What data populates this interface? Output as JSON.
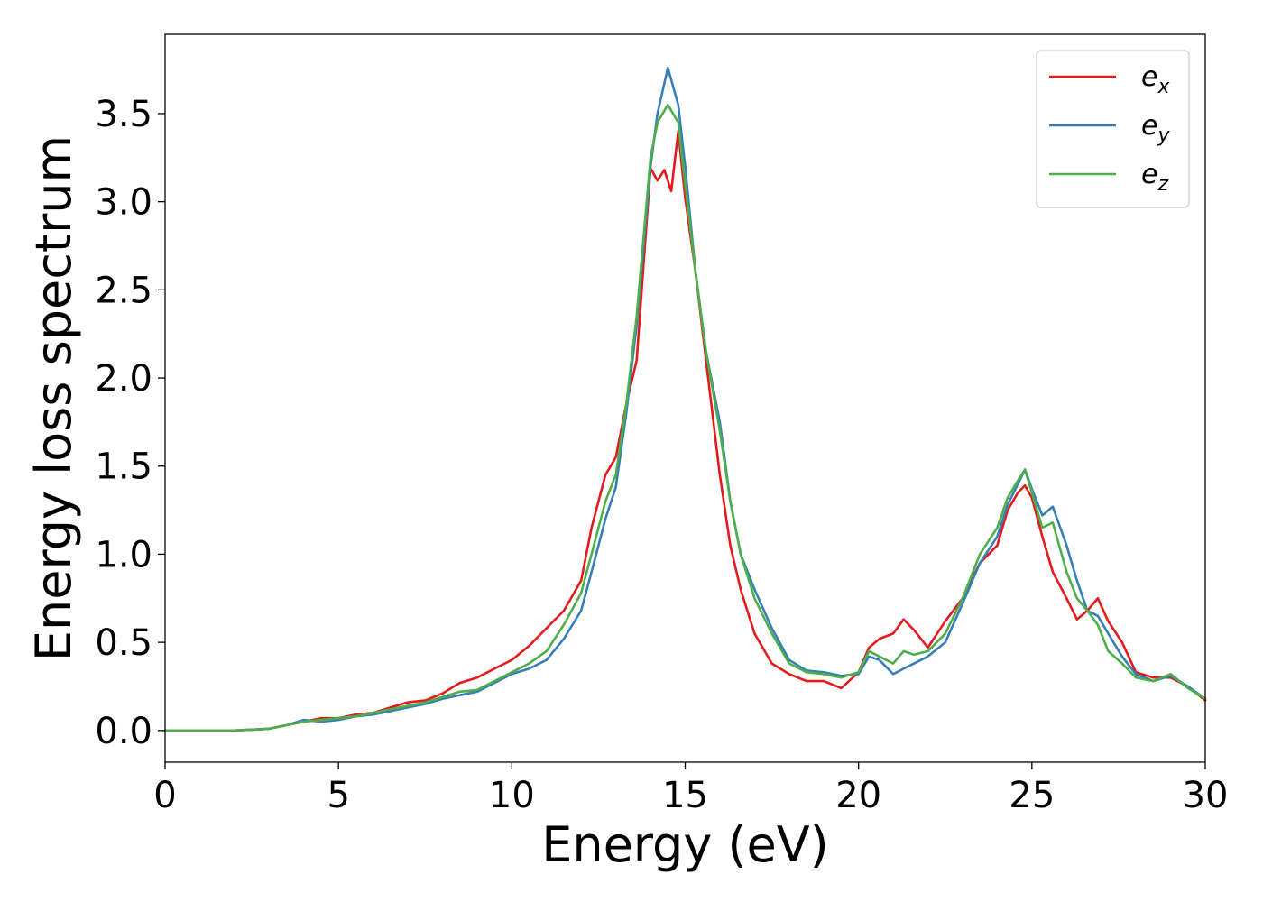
{
  "chart_data": {
    "type": "line",
    "xlabel": "Energy (eV)",
    "ylabel": "Energy loss spectrum",
    "xlim": [
      0,
      30
    ],
    "ylim": [
      -0.18,
      3.95
    ],
    "xticks": [
      0,
      5,
      10,
      15,
      20,
      25,
      30
    ],
    "xtick_labels": [
      "0",
      "5",
      "10",
      "15",
      "20",
      "25",
      "30"
    ],
    "yticks": [
      0.0,
      0.5,
      1.0,
      1.5,
      2.0,
      2.5,
      3.0,
      3.5
    ],
    "ytick_labels": [
      "0.0",
      "0.5",
      "1.0",
      "1.5",
      "2.0",
      "2.5",
      "3.0",
      "3.5"
    ],
    "grid": false,
    "legend_position": "top-right",
    "series": [
      {
        "name": "e_x",
        "label_base": "e",
        "label_sub": "x",
        "color": "#e41a1c",
        "x": [
          0,
          2,
          3,
          3.5,
          4,
          4.5,
          5,
          5.5,
          6,
          6.5,
          7,
          7.5,
          8,
          8.5,
          9,
          9.5,
          10,
          10.5,
          11,
          11.5,
          12,
          12.3,
          12.7,
          13,
          13.3,
          13.6,
          14,
          14.2,
          14.4,
          14.6,
          14.8,
          15,
          15.3,
          15.6,
          16,
          16.3,
          16.6,
          17,
          17.5,
          18,
          18.5,
          19,
          19.5,
          20,
          20.3,
          20.6,
          21,
          21.3,
          21.6,
          22,
          22.5,
          23,
          23.5,
          24,
          24.3,
          24.6,
          24.8,
          25,
          25.3,
          25.6,
          26,
          26.3,
          26.6,
          26.9,
          27.2,
          27.6,
          28,
          28.5,
          29,
          29.5,
          30
        ],
        "y": [
          0,
          0,
          0.01,
          0.03,
          0.05,
          0.07,
          0.07,
          0.09,
          0.1,
          0.13,
          0.16,
          0.17,
          0.21,
          0.27,
          0.3,
          0.35,
          0.4,
          0.48,
          0.58,
          0.68,
          0.85,
          1.15,
          1.45,
          1.55,
          1.85,
          2.1,
          3.19,
          3.12,
          3.18,
          3.06,
          3.4,
          3.02,
          2.6,
          2.1,
          1.45,
          1.05,
          0.8,
          0.55,
          0.38,
          0.32,
          0.28,
          0.28,
          0.24,
          0.33,
          0.47,
          0.52,
          0.55,
          0.63,
          0.57,
          0.47,
          0.62,
          0.75,
          0.95,
          1.05,
          1.25,
          1.35,
          1.39,
          1.32,
          1.1,
          0.9,
          0.75,
          0.63,
          0.68,
          0.75,
          0.62,
          0.5,
          0.33,
          0.3,
          0.3,
          0.25,
          0.17
        ]
      },
      {
        "name": "e_y",
        "label_base": "e",
        "label_sub": "y",
        "color": "#377eb8",
        "x": [
          0,
          2,
          3,
          3.5,
          4,
          4.5,
          5,
          5.5,
          6,
          6.5,
          7,
          7.5,
          8,
          8.5,
          9,
          9.5,
          10,
          10.5,
          11,
          11.5,
          12,
          12.3,
          12.7,
          13,
          13.3,
          13.6,
          14,
          14.2,
          14.5,
          14.8,
          15,
          15.3,
          15.6,
          16,
          16.3,
          16.6,
          17,
          17.5,
          18,
          18.5,
          19,
          19.5,
          20,
          20.3,
          20.6,
          21,
          21.3,
          21.6,
          22,
          22.5,
          23,
          23.5,
          24,
          24.3,
          24.6,
          24.8,
          25,
          25.3,
          25.6,
          26,
          26.3,
          26.6,
          26.9,
          27.2,
          27.6,
          28,
          28.5,
          29,
          29.5,
          30
        ],
        "y": [
          0,
          0,
          0.01,
          0.03,
          0.06,
          0.05,
          0.06,
          0.08,
          0.09,
          0.11,
          0.13,
          0.15,
          0.18,
          0.2,
          0.22,
          0.27,
          0.32,
          0.35,
          0.4,
          0.52,
          0.68,
          0.9,
          1.2,
          1.38,
          1.8,
          2.3,
          3.2,
          3.5,
          3.76,
          3.55,
          3.2,
          2.6,
          2.15,
          1.75,
          1.3,
          1.0,
          0.8,
          0.58,
          0.4,
          0.34,
          0.33,
          0.31,
          0.32,
          0.42,
          0.4,
          0.32,
          0.35,
          0.38,
          0.42,
          0.5,
          0.72,
          0.95,
          1.1,
          1.28,
          1.4,
          1.48,
          1.37,
          1.22,
          1.27,
          1.05,
          0.85,
          0.68,
          0.65,
          0.55,
          0.42,
          0.32,
          0.28,
          0.31,
          0.25,
          0.18
        ]
      },
      {
        "name": "e_z",
        "label_base": "e",
        "label_sub": "z",
        "color": "#4daf4a",
        "x": [
          0,
          2,
          3,
          3.5,
          4,
          4.5,
          5,
          5.5,
          6,
          6.5,
          7,
          7.5,
          8,
          8.5,
          9,
          9.5,
          10,
          10.5,
          11,
          11.5,
          12,
          12.3,
          12.7,
          13,
          13.3,
          13.6,
          14,
          14.2,
          14.5,
          14.8,
          15,
          15.3,
          15.6,
          16,
          16.3,
          16.6,
          17,
          17.5,
          18,
          18.5,
          19,
          19.5,
          20,
          20.3,
          20.6,
          21,
          21.3,
          21.6,
          22,
          22.5,
          23,
          23.5,
          24,
          24.3,
          24.6,
          24.8,
          25,
          25.3,
          25.6,
          26,
          26.3,
          26.6,
          26.9,
          27.2,
          27.6,
          28,
          28.5,
          29,
          29.5,
          30
        ],
        "y": [
          0,
          0,
          0.01,
          0.03,
          0.05,
          0.06,
          0.07,
          0.08,
          0.1,
          0.12,
          0.14,
          0.16,
          0.19,
          0.22,
          0.23,
          0.28,
          0.33,
          0.38,
          0.45,
          0.6,
          0.78,
          1.0,
          1.3,
          1.45,
          1.85,
          2.35,
          3.25,
          3.45,
          3.55,
          3.45,
          3.1,
          2.6,
          2.15,
          1.7,
          1.3,
          1.0,
          0.75,
          0.55,
          0.38,
          0.33,
          0.32,
          0.3,
          0.33,
          0.45,
          0.42,
          0.38,
          0.45,
          0.43,
          0.45,
          0.55,
          0.75,
          1.0,
          1.15,
          1.32,
          1.42,
          1.48,
          1.35,
          1.15,
          1.18,
          0.9,
          0.75,
          0.68,
          0.6,
          0.45,
          0.38,
          0.3,
          0.28,
          0.32,
          0.24,
          0.18
        ]
      }
    ]
  }
}
